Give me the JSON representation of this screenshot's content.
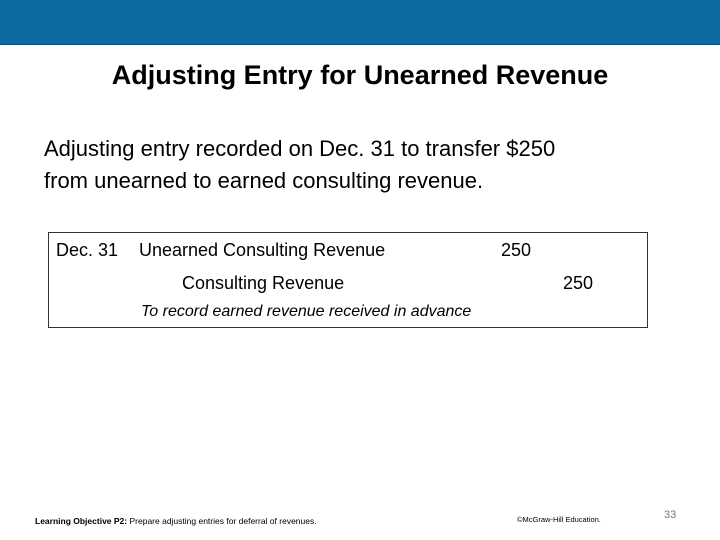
{
  "slide": {
    "title": "Adjusting Entry for Unearned Revenue",
    "intro_line1": "Adjusting entry recorded on Dec. 31 to transfer $250",
    "intro_line2": "from unearned to earned consulting revenue.",
    "header_bar_color": "#0f6aa0"
  },
  "journal": {
    "date": "Dec. 31",
    "debit_account": "Unearned Consulting Revenue",
    "debit_amount": "250",
    "credit_account": "Consulting Revenue",
    "credit_amount": "250",
    "memo": "To record earned revenue received in advance"
  },
  "footer": {
    "objective_label": "Learning Objective P2:",
    "objective_text": " Prepare adjusting entries for deferral of revenues.",
    "copyright": "©McGraw-Hill Education.",
    "page_number": "33"
  }
}
